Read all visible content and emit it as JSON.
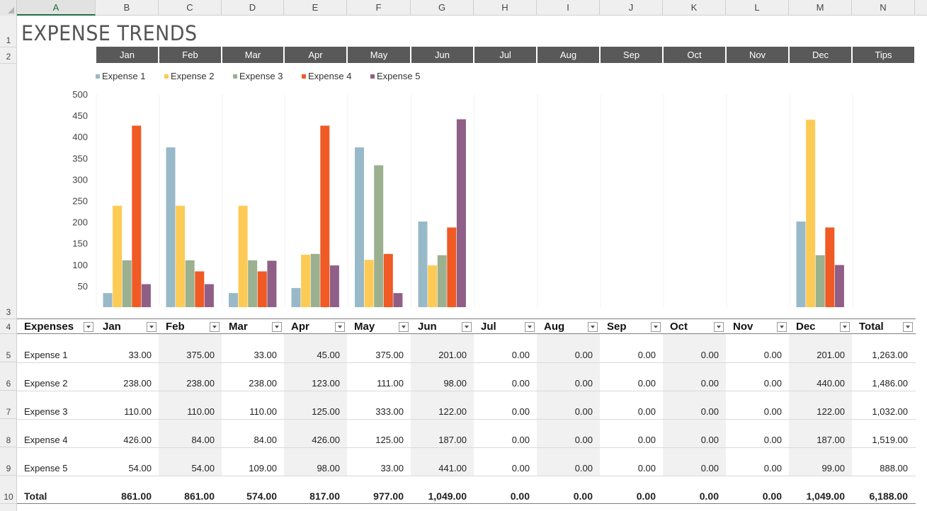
{
  "columns": [
    "A",
    "B",
    "C",
    "D",
    "E",
    "F",
    "G",
    "H",
    "I",
    "J",
    "K",
    "L",
    "M",
    "N"
  ],
  "rows": [
    "1",
    "2",
    "3",
    "4",
    "5",
    "6",
    "7",
    "8",
    "9",
    "10"
  ],
  "title": "EXPENSE TRENDS",
  "nav_tabs": [
    "Jan",
    "Feb",
    "Mar",
    "Apr",
    "May",
    "Jun",
    "Jul",
    "Aug",
    "Sep",
    "Oct",
    "Nov",
    "Dec",
    "Tips"
  ],
  "chart_data": {
    "type": "bar",
    "categories": [
      "Jan",
      "Feb",
      "Mar",
      "Apr",
      "May",
      "Jun",
      "Jul",
      "Aug",
      "Sep",
      "Oct",
      "Nov",
      "Dec"
    ],
    "series": [
      {
        "name": "Expense 1",
        "color": "#98b9c8",
        "values": [
          33,
          375,
          33,
          45,
          375,
          201,
          0,
          0,
          0,
          0,
          0,
          201
        ]
      },
      {
        "name": "Expense 2",
        "color": "#fdcb55",
        "values": [
          238,
          238,
          238,
          123,
          111,
          98,
          0,
          0,
          0,
          0,
          0,
          440
        ]
      },
      {
        "name": "Expense 3",
        "color": "#9bb08f",
        "values": [
          110,
          110,
          110,
          125,
          333,
          122,
          0,
          0,
          0,
          0,
          0,
          122
        ]
      },
      {
        "name": "Expense 4",
        "color": "#f05a24",
        "values": [
          426,
          84,
          84,
          426,
          125,
          187,
          0,
          0,
          0,
          0,
          0,
          187
        ]
      },
      {
        "name": "Expense 5",
        "color": "#8f5f87",
        "values": [
          54,
          54,
          109,
          98,
          33,
          441,
          0,
          0,
          0,
          0,
          0,
          99
        ]
      }
    ],
    "yticks": [
      50,
      100,
      150,
      200,
      250,
      300,
      350,
      400,
      450,
      500
    ],
    "ylim": [
      0,
      500
    ],
    "legend_position": "top-left",
    "grid": "vertical"
  },
  "table": {
    "headers": [
      "Expenses",
      "Jan",
      "Feb",
      "Mar",
      "Apr",
      "May",
      "Jun",
      "Jul",
      "Aug",
      "Sep",
      "Oct",
      "Nov",
      "Dec",
      "Total"
    ],
    "rows": [
      [
        "Expense 1",
        "33.00",
        "375.00",
        "33.00",
        "45.00",
        "375.00",
        "201.00",
        "0.00",
        "0.00",
        "0.00",
        "0.00",
        "0.00",
        "201.00",
        "1,263.00"
      ],
      [
        "Expense 2",
        "238.00",
        "238.00",
        "238.00",
        "123.00",
        "111.00",
        "98.00",
        "0.00",
        "0.00",
        "0.00",
        "0.00",
        "0.00",
        "440.00",
        "1,486.00"
      ],
      [
        "Expense 3",
        "110.00",
        "110.00",
        "110.00",
        "125.00",
        "333.00",
        "122.00",
        "0.00",
        "0.00",
        "0.00",
        "0.00",
        "0.00",
        "122.00",
        "1,032.00"
      ],
      [
        "Expense 4",
        "426.00",
        "84.00",
        "84.00",
        "426.00",
        "125.00",
        "187.00",
        "0.00",
        "0.00",
        "0.00",
        "0.00",
        "0.00",
        "187.00",
        "1,519.00"
      ],
      [
        "Expense 5",
        "54.00",
        "54.00",
        "109.00",
        "98.00",
        "33.00",
        "441.00",
        "0.00",
        "0.00",
        "0.00",
        "0.00",
        "0.00",
        "99.00",
        "888.00"
      ]
    ],
    "total": [
      "Total",
      "861.00",
      "861.00",
      "574.00",
      "817.00",
      "977.00",
      "1,049.00",
      "0.00",
      "0.00",
      "0.00",
      "0.00",
      "0.00",
      "1,049.00",
      "6,188.00"
    ]
  }
}
